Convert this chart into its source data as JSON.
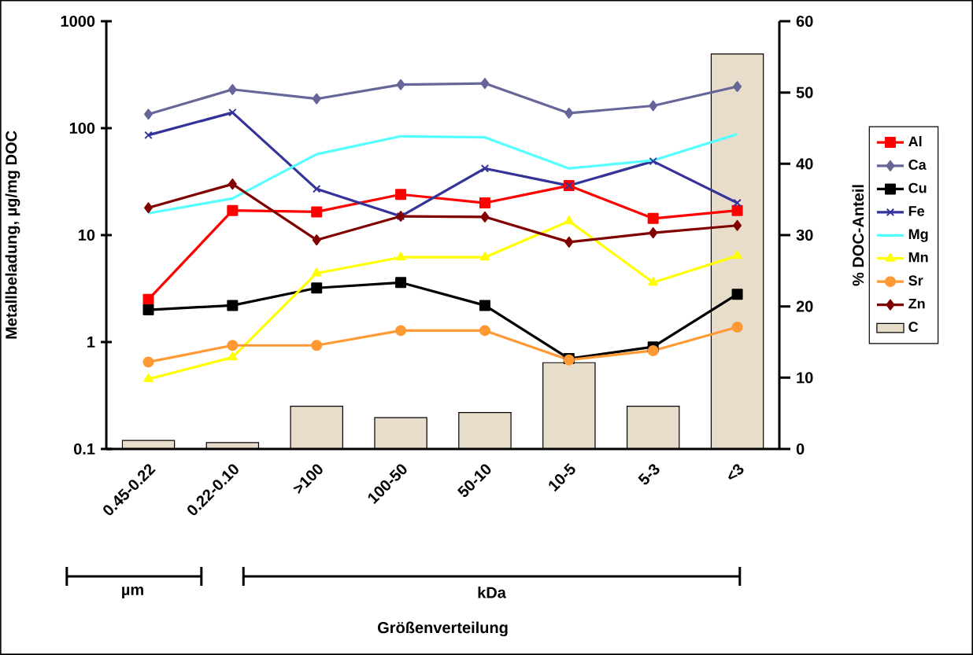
{
  "chart_data": {
    "type": "line",
    "categories": [
      "0.45-0.22",
      "0.22-0.10",
      ">100",
      "100-50",
      "50-10",
      "10-5",
      "5-3",
      "<3"
    ],
    "series": [
      {
        "name": "Al",
        "color": "#ff0000",
        "marker": "square",
        "values": [
          2.5,
          17,
          16.5,
          24,
          20,
          29,
          14.3,
          17
        ]
      },
      {
        "name": "Ca",
        "color": "#666699",
        "marker": "diamond",
        "values": [
          135,
          230,
          188,
          255,
          262,
          138,
          162,
          245
        ]
      },
      {
        "name": "Cu",
        "color": "#000000",
        "marker": "square",
        "values": [
          2.0,
          2.2,
          3.2,
          3.6,
          2.2,
          0.7,
          0.9,
          2.8
        ]
      },
      {
        "name": "Fe",
        "color": "#333399",
        "marker": "cross",
        "values": [
          86,
          140,
          27,
          15,
          42,
          29,
          49,
          20
        ]
      },
      {
        "name": "Mg",
        "color": "#55ffff",
        "marker": "none",
        "values": [
          16,
          22,
          57,
          84,
          82,
          42,
          50,
          88
        ]
      },
      {
        "name": "Mn",
        "color": "#ffff00",
        "marker": "triangle",
        "values": [
          0.45,
          0.72,
          4.4,
          6.2,
          6.2,
          13.5,
          3.6,
          6.4
        ]
      },
      {
        "name": "Sr",
        "color": "#ff9933",
        "marker": "circle",
        "values": [
          0.65,
          0.93,
          0.93,
          1.28,
          1.28,
          0.68,
          0.83,
          1.38
        ]
      },
      {
        "name": "Zn",
        "color": "#800000",
        "marker": "diamond",
        "values": [
          18,
          30,
          9,
          15,
          14.8,
          8.6,
          10.5,
          12.3
        ]
      },
      {
        "name": "C",
        "color": "#e8dccb",
        "type": "bar",
        "axis": "y2",
        "values": [
          1.2,
          0.9,
          6,
          4.4,
          5.1,
          12.1,
          6,
          55.4
        ]
      }
    ],
    "log": "y",
    "ylim": [
      0.1,
      1000
    ],
    "yticks": [
      0.1,
      1,
      10,
      100,
      1000
    ],
    "y2lim": [
      0,
      60
    ],
    "y2ticks": [
      0,
      10,
      20,
      30,
      40,
      50,
      60
    ],
    "ylabel": "Metallbeladung, µg/mg DOC",
    "y2label": "% DOC-Anteil",
    "annotations": [
      "µm",
      "kDa",
      "Größenverteilung"
    ],
    "legend": "right"
  }
}
